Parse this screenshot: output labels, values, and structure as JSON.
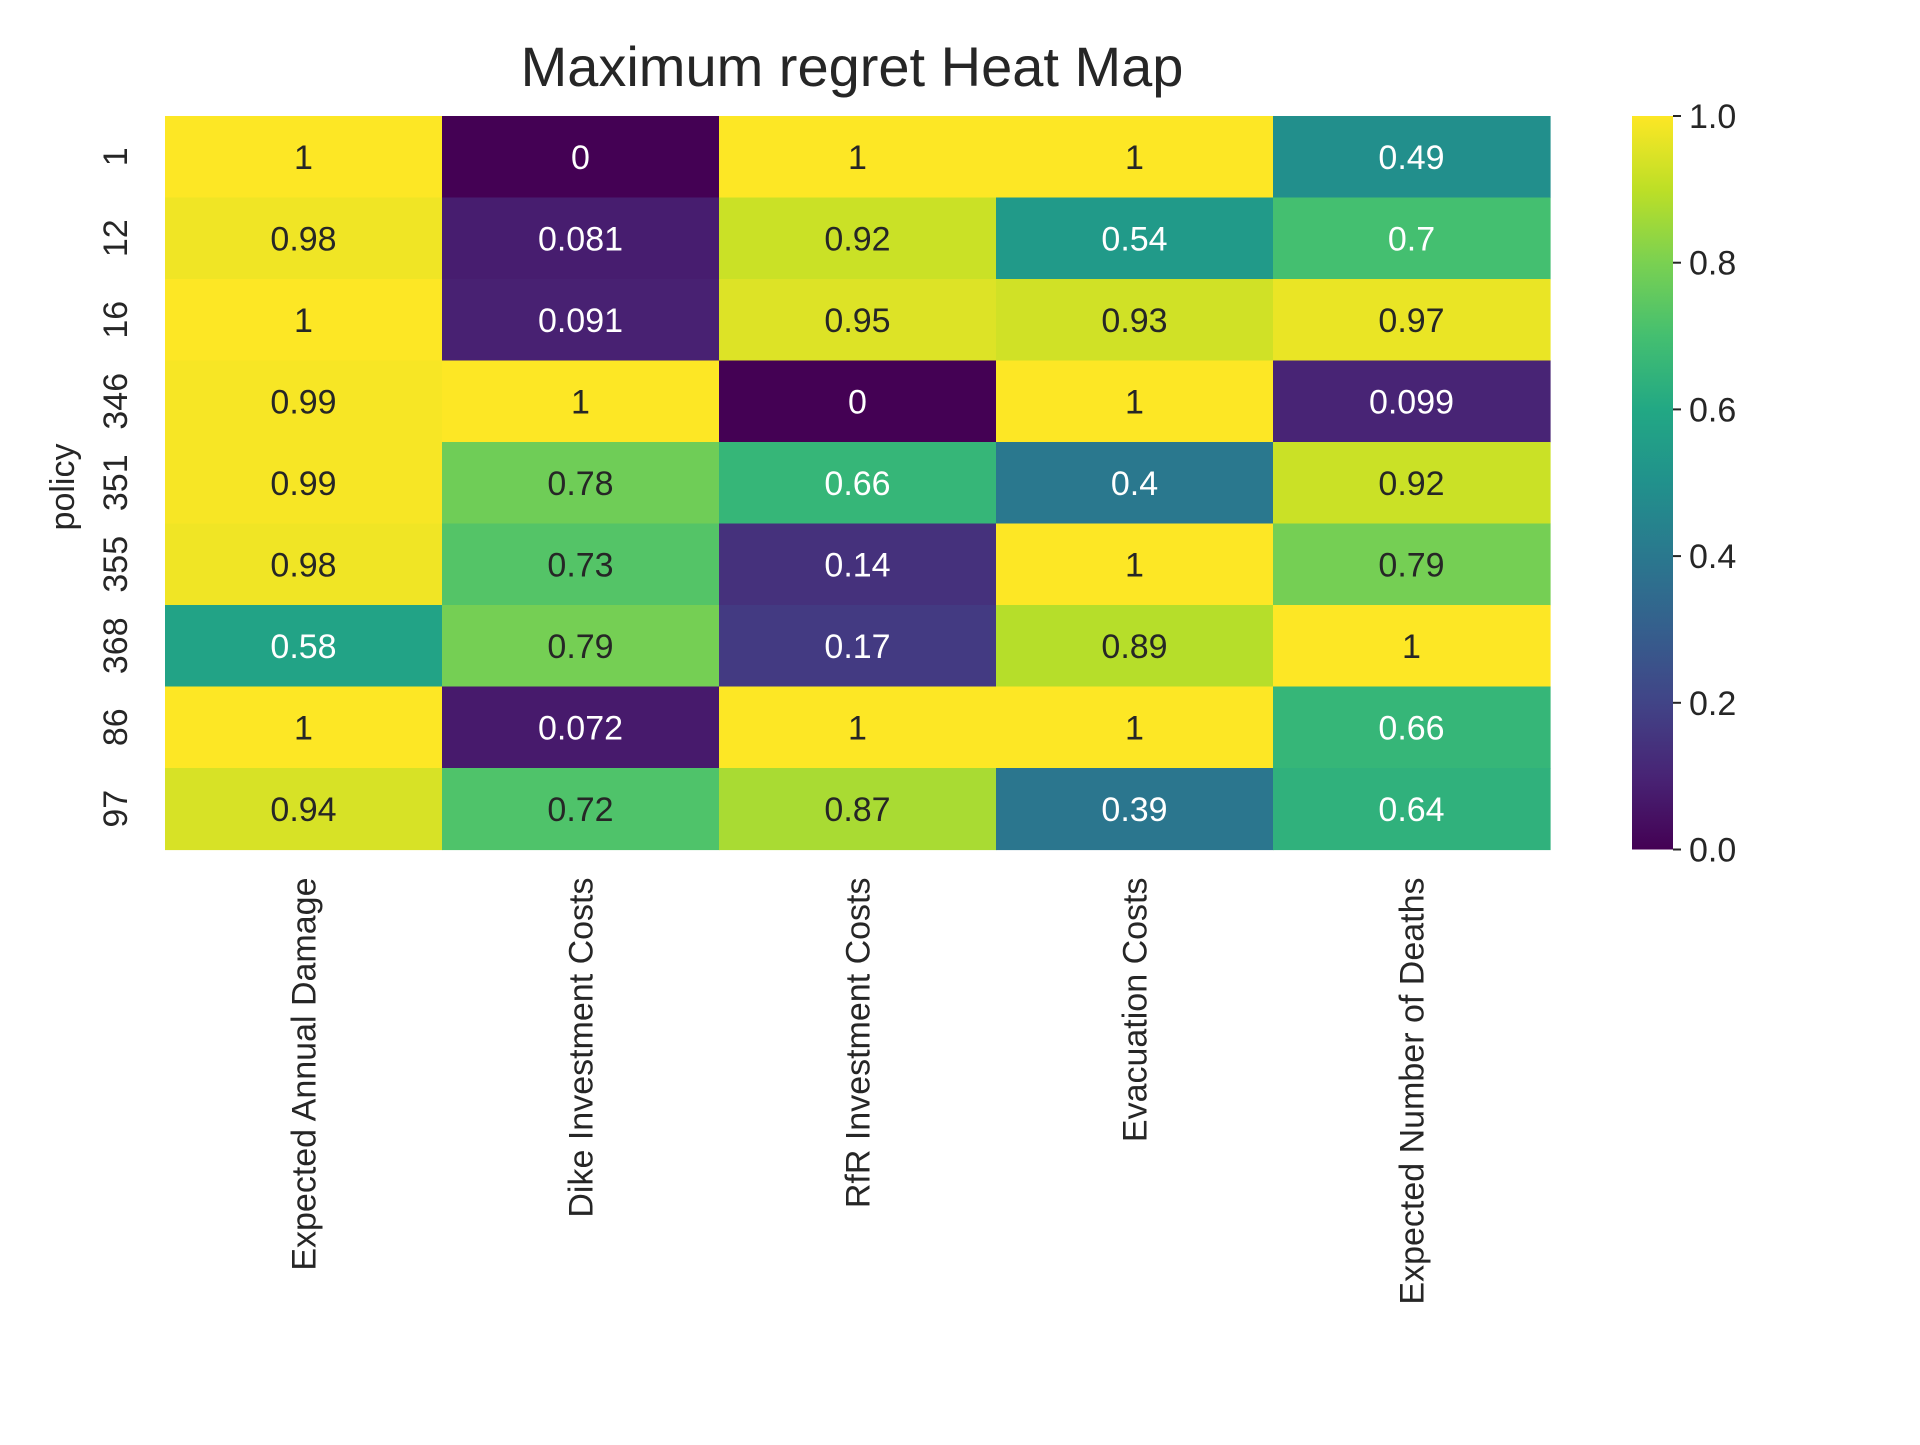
{
  "chart_data": {
    "type": "heatmap",
    "title": "Maximum regret Heat Map",
    "ylabel": "policy",
    "xlabel": "",
    "x_categories": [
      "Expected Annual Damage",
      "Dike Investment Costs",
      "RfR Investment Costs",
      "Evacuation Costs",
      "Expected Number of Deaths"
    ],
    "y_categories": [
      "1",
      "12",
      "16",
      "346",
      "351",
      "355",
      "368",
      "86",
      "97"
    ],
    "values": [
      [
        1,
        0,
        1,
        1,
        0.49
      ],
      [
        0.98,
        0.081,
        0.92,
        0.54,
        0.7
      ],
      [
        1,
        0.091,
        0.95,
        0.93,
        0.97
      ],
      [
        0.99,
        1,
        0,
        1,
        0.099
      ],
      [
        0.99,
        0.78,
        0.66,
        0.4,
        0.92
      ],
      [
        0.98,
        0.73,
        0.14,
        1,
        0.79
      ],
      [
        0.58,
        0.79,
        0.17,
        0.89,
        1
      ],
      [
        1,
        0.072,
        1,
        1,
        0.66
      ],
      [
        0.94,
        0.72,
        0.87,
        0.39,
        0.64
      ]
    ],
    "annotations": [
      [
        "1",
        "0",
        "1",
        "1",
        "0.49"
      ],
      [
        "0.98",
        "0.081",
        "0.92",
        "0.54",
        "0.7"
      ],
      [
        "1",
        "0.091",
        "0.95",
        "0.93",
        "0.97"
      ],
      [
        "0.99",
        "1",
        "0",
        "1",
        "0.099"
      ],
      [
        "0.99",
        "0.78",
        "0.66",
        "0.4",
        "0.92"
      ],
      [
        "0.98",
        "0.73",
        "0.14",
        "1",
        "0.79"
      ],
      [
        "0.58",
        "0.79",
        "0.17",
        "0.89",
        "1"
      ],
      [
        "1",
        "0.072",
        "1",
        "1",
        "0.66"
      ],
      [
        "0.94",
        "0.72",
        "0.87",
        "0.39",
        "0.64"
      ]
    ],
    "colormap": "viridis",
    "value_range": [
      0,
      1
    ],
    "colorbar": {
      "ticks": [
        0.0,
        0.2,
        0.4,
        0.6,
        0.8,
        1.0
      ],
      "tick_labels": [
        "0.0",
        "0.2",
        "0.4",
        "0.6",
        "0.8",
        "1.0"
      ]
    },
    "grid": false,
    "legend": "colorbar-right"
  },
  "colors": {
    "text_dark": "#262626",
    "text_light": "#ffffff",
    "viridis_stops": [
      "#440154",
      "#482475",
      "#414487",
      "#355f8d",
      "#2a788e",
      "#21918c",
      "#22a884",
      "#44bf70",
      "#7ad151",
      "#bddf26",
      "#fde725"
    ]
  }
}
